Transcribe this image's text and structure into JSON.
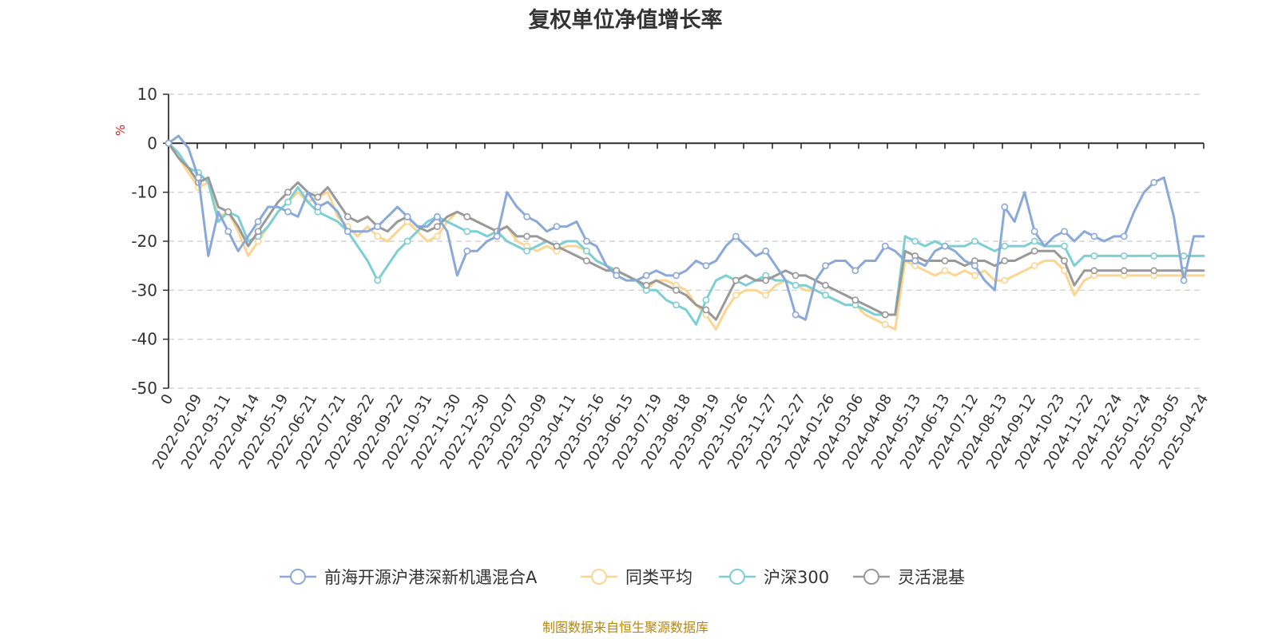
{
  "chart_data": {
    "type": "line",
    "title": "复权单位净值增长率",
    "ylabel": "%",
    "ylim": [
      -50,
      10
    ],
    "yticks": [
      10,
      0,
      -10,
      -20,
      -30,
      -40,
      -50
    ],
    "x_tick_labels": [
      "0",
      "2022-02-09",
      "2022-03-11",
      "2022-04-14",
      "2022-05-19",
      "2022-06-21",
      "2022-07-21",
      "2022-08-22",
      "2022-09-22",
      "2022-10-31",
      "2022-11-30",
      "2022-12-30",
      "2023-02-07",
      "2023-03-09",
      "2023-04-11",
      "2023-05-16",
      "2023-06-15",
      "2023-07-19",
      "2023-08-18",
      "2023-09-19",
      "2023-10-26",
      "2023-11-27",
      "2023-12-27",
      "2024-01-26",
      "2024-03-06",
      "2024-04-08",
      "2024-05-13",
      "2024-06-13",
      "2024-07-12",
      "2024-08-13",
      "2024-09-12",
      "2024-10-23",
      "2024-11-22",
      "2024-12-24",
      "2025-01-24",
      "2025-03-05",
      "2025-04-24"
    ],
    "grid": "horizontal-dashed",
    "legend_position": "bottom",
    "series": [
      {
        "name": "前海开源沪港深新机遇混合A",
        "color": "#8aa8d8",
        "values": [
          0,
          1.5,
          -1,
          -7,
          -23,
          -14,
          -18,
          -22,
          -19,
          -16,
          -13,
          -13,
          -14,
          -15,
          -10,
          -13,
          -12,
          -14,
          -18,
          -18,
          -18,
          -17,
          -15,
          -13,
          -15,
          -17,
          -17,
          -15,
          -18,
          -27,
          -22,
          -22,
          -20,
          -19,
          -10,
          -13,
          -15,
          -16,
          -18,
          -17,
          -17,
          -16,
          -20,
          -21,
          -25,
          -27,
          -28,
          -28,
          -27,
          -26,
          -27,
          -27,
          -26,
          -24,
          -25,
          -24,
          -21,
          -19,
          -21,
          -23,
          -22,
          -25,
          -28,
          -35,
          -36,
          -28,
          -25,
          -24,
          -24,
          -26,
          -24,
          -24,
          -21,
          -22,
          -24,
          -24,
          -25,
          -22,
          -21,
          -22,
          -24,
          -25,
          -28,
          -30,
          -13,
          -16,
          -10,
          -18,
          -21,
          -19,
          -18,
          -20,
          -18,
          -19,
          -20,
          -19,
          -19,
          -14,
          -10,
          -8,
          -7,
          -15,
          -28,
          -19,
          -19
        ]
      },
      {
        "name": "同类平均",
        "color": "#fcd690",
        "values": [
          0,
          -3,
          -6,
          -9,
          -8,
          -15,
          -14,
          -18,
          -23,
          -20,
          -17,
          -14,
          -12,
          -10,
          -12,
          -11,
          -10,
          -15,
          -17,
          -19,
          -17,
          -19,
          -20,
          -18,
          -16,
          -18,
          -20,
          -19,
          -16,
          -14,
          -15,
          -16,
          -17,
          -18,
          -17,
          -20,
          -21,
          -22,
          -21,
          -22,
          -21,
          -21,
          -22,
          -24,
          -25,
          -26,
          -27,
          -28,
          -30,
          -28,
          -28,
          -29,
          -30,
          -33,
          -35,
          -38,
          -34,
          -31,
          -30,
          -30,
          -31,
          -29,
          -28,
          -29,
          -30,
          -30,
          -31,
          -32,
          -33,
          -33,
          -35,
          -36,
          -37,
          -38,
          -24,
          -25,
          -26,
          -27,
          -26,
          -27,
          -26,
          -27,
          -26,
          -28,
          -28,
          -27,
          -26,
          -25,
          -24,
          -24,
          -26,
          -31,
          -28,
          -27,
          -27,
          -27,
          -27,
          -27,
          -27,
          -27,
          -27,
          -27,
          -27,
          -27,
          -27
        ]
      },
      {
        "name": "沪深300",
        "color": "#7ccfd4",
        "values": [
          0,
          -2,
          -5,
          -6,
          -8,
          -16,
          -14,
          -15,
          -20,
          -19,
          -17,
          -14,
          -12,
          -9,
          -12,
          -14,
          -15,
          -16,
          -18,
          -21,
          -24,
          -28,
          -25,
          -22,
          -20,
          -18,
          -16,
          -15,
          -16,
          -17,
          -18,
          -18,
          -19,
          -18,
          -20,
          -21,
          -22,
          -21,
          -20,
          -21,
          -20,
          -20,
          -22,
          -24,
          -25,
          -26,
          -27,
          -28,
          -30,
          -30,
          -32,
          -33,
          -34,
          -37,
          -32,
          -28,
          -27,
          -28,
          -29,
          -28,
          -27,
          -28,
          -28,
          -29,
          -29,
          -30,
          -31,
          -32,
          -33,
          -33,
          -34,
          -35,
          -35,
          -35,
          -19,
          -20,
          -21,
          -20,
          -21,
          -21,
          -21,
          -20,
          -21,
          -22,
          -21,
          -21,
          -21,
          -20,
          -21,
          -21,
          -21,
          -25,
          -23,
          -23,
          -23,
          -23,
          -23,
          -23,
          -23,
          -23,
          -23,
          -23,
          -23,
          -23,
          -23
        ]
      },
      {
        "name": "灵活混基",
        "color": "#999999",
        "values": [
          0,
          -3,
          -5,
          -8,
          -7,
          -13,
          -14,
          -17,
          -21,
          -18,
          -15,
          -12,
          -10,
          -8,
          -10,
          -11,
          -9,
          -12,
          -15,
          -16,
          -15,
          -17,
          -18,
          -16,
          -15,
          -17,
          -18,
          -17,
          -15,
          -14,
          -15,
          -16,
          -17,
          -18,
          -17,
          -19,
          -19,
          -19,
          -20,
          -21,
          -22,
          -23,
          -24,
          -25,
          -26,
          -26,
          -27,
          -28,
          -29,
          -28,
          -29,
          -30,
          -31,
          -33,
          -34,
          -36,
          -32,
          -28,
          -27,
          -28,
          -28,
          -27,
          -26,
          -27,
          -27,
          -28,
          -29,
          -30,
          -31,
          -32,
          -33,
          -34,
          -35,
          -35,
          -22,
          -23,
          -24,
          -24,
          -24,
          -24,
          -25,
          -24,
          -24,
          -25,
          -24,
          -24,
          -23,
          -22,
          -22,
          -22,
          -24,
          -29,
          -26,
          -26,
          -26,
          -26,
          -26,
          -26,
          -26,
          -26,
          -26,
          -26,
          -26,
          -26,
          -26
        ]
      }
    ],
    "source_note": "制图数据来自恒生聚源数据库"
  }
}
